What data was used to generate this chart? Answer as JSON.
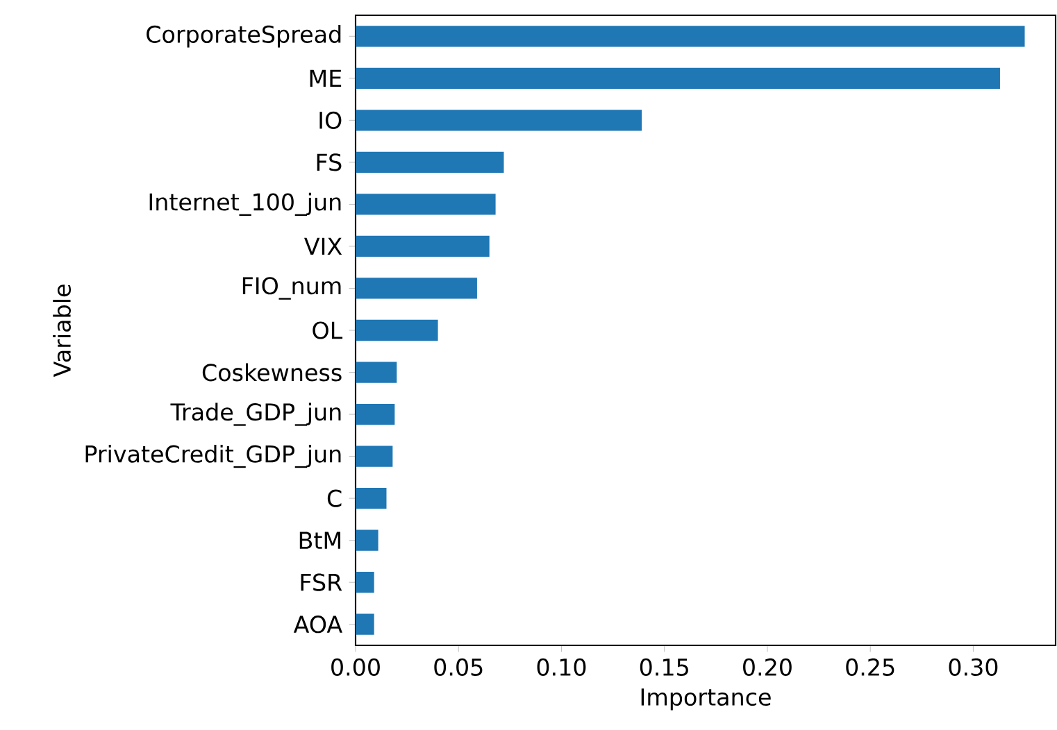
{
  "chart_data": {
    "type": "bar",
    "orientation": "horizontal",
    "xlabel": "Importance",
    "ylabel": "Variable",
    "categories": [
      "CorporateSpread",
      "ME",
      "IO",
      "FS",
      "Internet_100_jun",
      "VIX",
      "FIO_num",
      "OL",
      "Coskewness",
      "Trade_GDP_jun",
      "PrivateCredit_GDP_jun",
      "C",
      "BtM",
      "FSR",
      "AOA"
    ],
    "values": [
      0.325,
      0.313,
      0.139,
      0.072,
      0.068,
      0.065,
      0.059,
      0.04,
      0.02,
      0.019,
      0.018,
      0.015,
      0.011,
      0.009,
      0.009
    ],
    "color": "#1f77b4",
    "xlim": [
      0,
      0.34
    ],
    "xticks": [
      {
        "value": 0,
        "label": "0.00"
      },
      {
        "value": 0.05,
        "label": "0.05"
      },
      {
        "value": 0.1,
        "label": "0.10"
      },
      {
        "value": 0.15,
        "label": "0.15"
      },
      {
        "value": 0.2,
        "label": "0.20"
      },
      {
        "value": 0.25,
        "label": "0.25"
      },
      {
        "value": 0.3,
        "label": "0.30"
      }
    ]
  }
}
